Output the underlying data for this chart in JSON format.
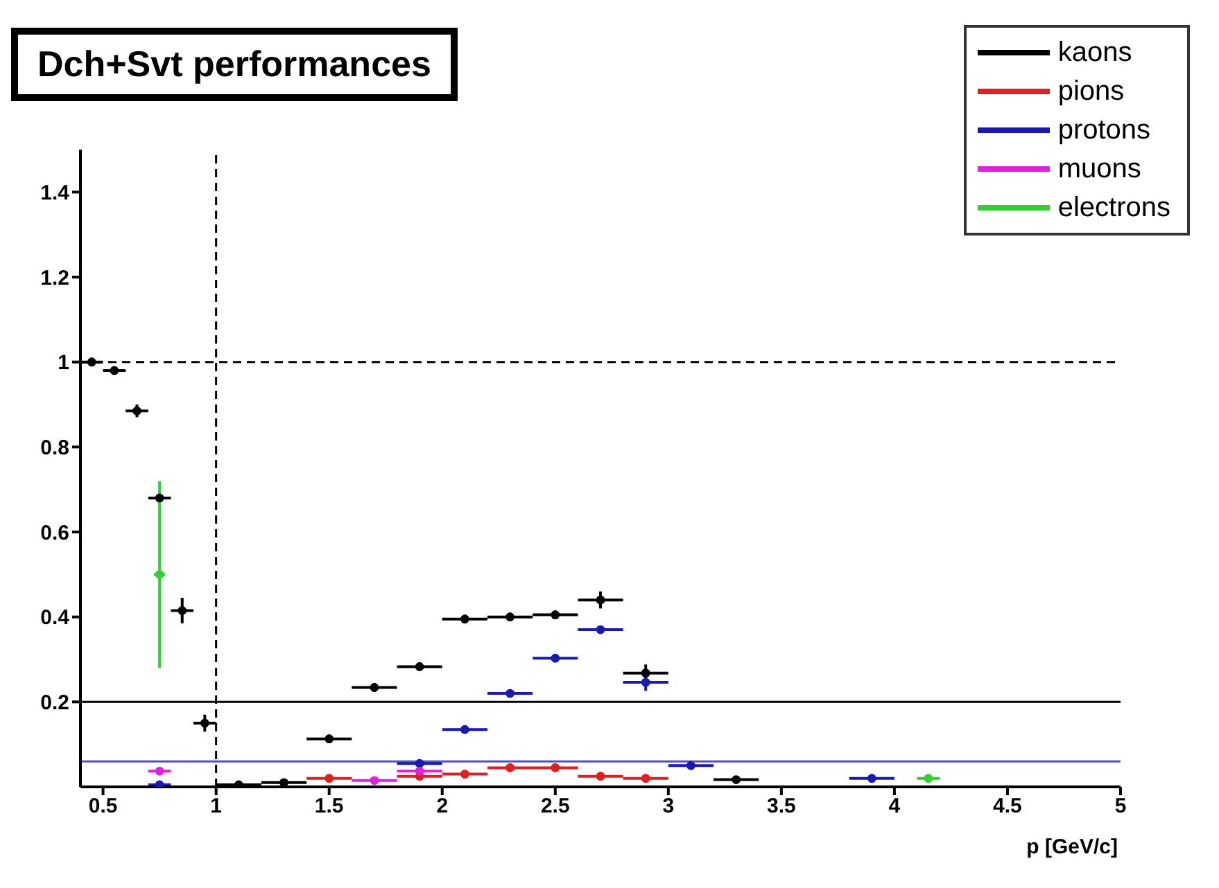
{
  "chart_data": {
    "type": "scatter",
    "title": "Dch+Svt performances",
    "xlabel": "p [GeV/c]",
    "xlim": [
      0.4,
      5
    ],
    "xticks": [
      0.5,
      1,
      1.5,
      2,
      2.5,
      3,
      3.5,
      4,
      4.5,
      5
    ],
    "ylim": [
      0,
      1.5
    ],
    "yticks": [
      0.2,
      0.4,
      0.6,
      0.8,
      1,
      1.2,
      1.4
    ],
    "legend": "top right",
    "series": [
      {
        "name": "kaons",
        "color": "#000000",
        "x": [
          0.45,
          0.55,
          0.65,
          0.75,
          0.85,
          0.95,
          1.1,
          1.3,
          1.5,
          1.7,
          1.9,
          2.1,
          2.3,
          2.5,
          2.7,
          2.9,
          3.3
        ],
        "values": [
          1.0,
          0.98,
          0.885,
          0.68,
          0.415,
          0.15,
          0.005,
          0.01,
          0.113,
          0.234,
          0.283,
          0.395,
          0.4,
          0.405,
          0.44,
          0.268,
          0.017
        ],
        "xerrors": [
          0.05,
          0.05,
          0.05,
          0.05,
          0.05,
          0.05,
          0.1,
          0.1,
          0.1,
          0.1,
          0.1,
          0.1,
          0.1,
          0.1,
          0.1,
          0.1,
          0.1
        ],
        "errors": [
          0.01,
          0.01,
          0.015,
          null,
          0.03,
          0.02,
          null,
          null,
          0.01,
          0.01,
          0.01,
          0.01,
          0.01,
          0.01,
          0.02,
          0.02,
          0.005
        ]
      },
      {
        "name": "pions",
        "color": "#e02020",
        "x": [
          1.5,
          1.9,
          2.1,
          2.3,
          2.5,
          2.7,
          2.9
        ],
        "values": [
          0.02,
          0.025,
          0.03,
          0.045,
          0.045,
          0.025,
          0.02
        ],
        "xerrors": [
          0.1,
          0.1,
          0.1,
          0.1,
          0.1,
          0.1,
          0.1
        ],
        "errors": [
          0.01,
          0.01,
          0.01,
          0.01,
          0.01,
          0.01,
          0.01
        ]
      },
      {
        "name": "protons",
        "color": "#1a1ab0",
        "x": [
          0.75,
          1.9,
          2.1,
          2.3,
          2.5,
          2.7,
          2.9,
          3.1,
          3.9
        ],
        "values": [
          0.005,
          0.055,
          0.135,
          0.22,
          0.303,
          0.37,
          0.246,
          0.05,
          0.02
        ],
        "xerrors": [
          0.05,
          0.1,
          0.1,
          0.1,
          0.1,
          0.1,
          0.1,
          0.1,
          0.1
        ],
        "errors": [
          0.003,
          0.005,
          0.005,
          0.01,
          0.01,
          0.01,
          0.02,
          0.01,
          0.01
        ]
      },
      {
        "name": "muons",
        "color": "#e020e0",
        "x": [
          0.75,
          1.7,
          1.9
        ],
        "values": [
          0.037,
          0.015,
          0.037
        ],
        "xerrors": [
          0.05,
          0.1,
          0.1
        ],
        "errors": [
          0.005,
          0.005,
          0.005
        ]
      },
      {
        "name": "electrons",
        "color": "#30d030",
        "x": [
          0.75,
          4.15
        ],
        "values": [
          0.5,
          0.02
        ],
        "xerrors": [
          0.025,
          0.05
        ],
        "errors": [
          0.22,
          0.01
        ]
      }
    ],
    "ref_lines": [
      {
        "axis": "y",
        "value": 1,
        "color": "#000000",
        "line_style": "dashed"
      },
      {
        "axis": "x",
        "value": 1,
        "color": "#000000",
        "line_style": "dashed"
      },
      {
        "axis": "y",
        "value": 0.2,
        "color": "#000000",
        "line_style": "solid"
      },
      {
        "axis": "y",
        "value": 0.06,
        "color": "#5050c0",
        "line_style": "solid"
      }
    ]
  }
}
